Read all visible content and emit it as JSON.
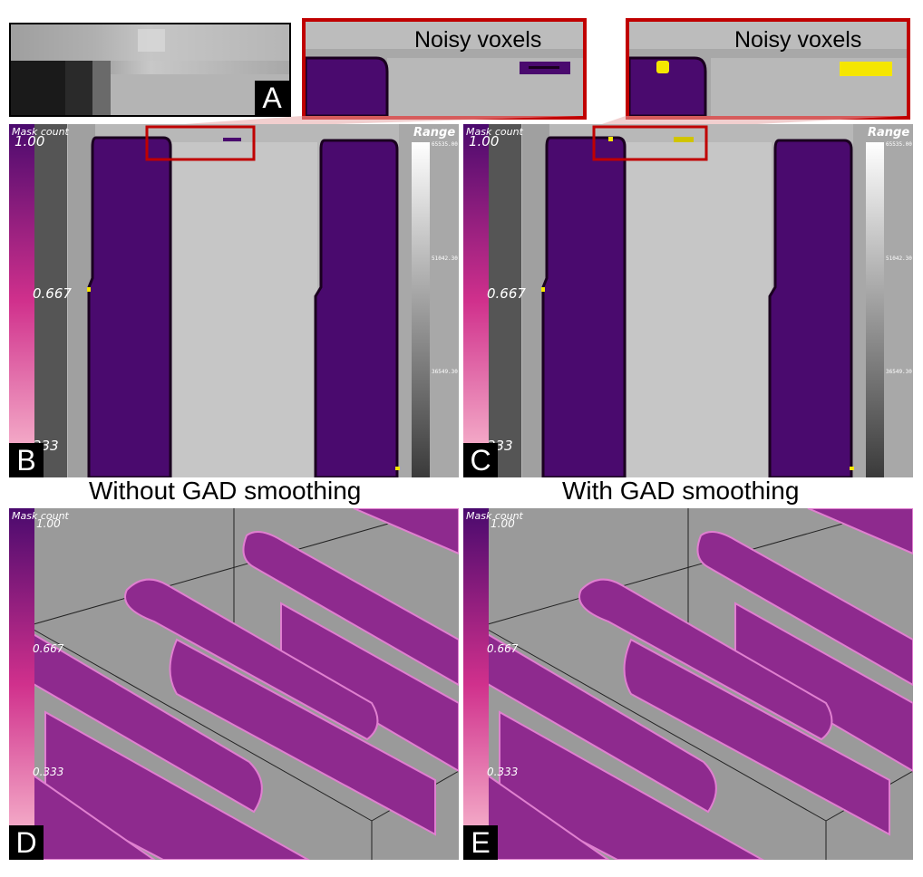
{
  "panels": {
    "A": {
      "letter": "A"
    },
    "B": {
      "letter": "B",
      "mask_title": "Mask count",
      "ticks": [
        "1.00",
        "0.667",
        "333"
      ],
      "range_title": "Range",
      "range_ticks": [
        "65535.00",
        "51042.30",
        "36549.30"
      ]
    },
    "C": {
      "letter": "C",
      "mask_title": "Mask count",
      "ticks": [
        "1.00",
        "0.667",
        "333"
      ],
      "range_title": "Range",
      "range_ticks": [
        "65535.00",
        "51042.30",
        "36549.30"
      ]
    },
    "D": {
      "letter": "D",
      "mask_title": "Mask count",
      "ticks": [
        "1.00",
        "0.667",
        "0.333"
      ]
    },
    "E": {
      "letter": "E",
      "mask_title": "Mask count",
      "ticks": [
        "1.00",
        "0.667",
        "0.333"
      ]
    }
  },
  "insets": {
    "left": {
      "label": "Noisy voxels"
    },
    "right": {
      "label": "Noisy voxels"
    }
  },
  "captions": {
    "left": "Without GAD smoothing",
    "right": "With GAD smoothing"
  },
  "colors": {
    "inset_border": "#c00000",
    "mask_purple": "#4a0a6e",
    "noisy_yellow": "#f5e600",
    "rod_magenta": "#8e2a8e",
    "background_gray": "#9a9a9a"
  }
}
